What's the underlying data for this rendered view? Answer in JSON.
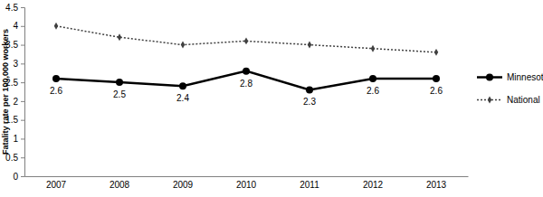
{
  "chart_data": {
    "type": "line",
    "y_label": "Fatality rate per 100,000 workers",
    "categories": [
      "2007",
      "2008",
      "2009",
      "2010",
      "2011",
      "2012",
      "2013"
    ],
    "series": [
      {
        "name": "Minnesota",
        "color": "#000000",
        "marker": "circle",
        "line_style": "solid",
        "data_labels": true,
        "values": [
          2.6,
          2.5,
          2.4,
          2.8,
          2.3,
          2.6,
          2.6
        ]
      },
      {
        "name": "National",
        "color": "#404040",
        "marker": "diamond",
        "line_style": "dotted",
        "values": [
          4.0,
          3.7,
          3.5,
          3.6,
          3.5,
          3.4,
          3.3
        ]
      }
    ],
    "ylim": [
      0,
      4.5
    ],
    "yticks": [
      0,
      0.5,
      1,
      1.5,
      2,
      2.5,
      3,
      3.5,
      4,
      4.5
    ],
    "grid": false,
    "legend": "right"
  }
}
